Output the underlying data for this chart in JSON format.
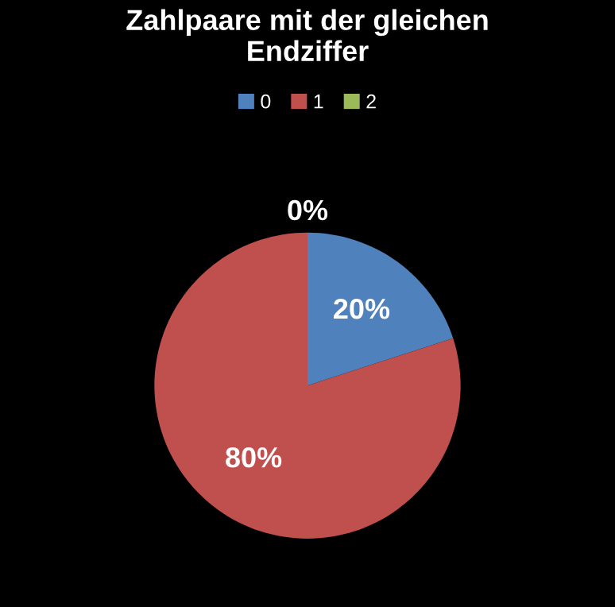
{
  "chart_data": {
    "type": "pie",
    "title": "Zahlpaare mit der gleichen\nEndziffer",
    "categories": [
      "0",
      "1",
      "2"
    ],
    "values": [
      20,
      80,
      0
    ],
    "colors": [
      "#4f81bd",
      "#c0504d",
      "#9bbb59"
    ],
    "value_labels": [
      "20%",
      "80%",
      "0%"
    ],
    "legend": "top"
  }
}
